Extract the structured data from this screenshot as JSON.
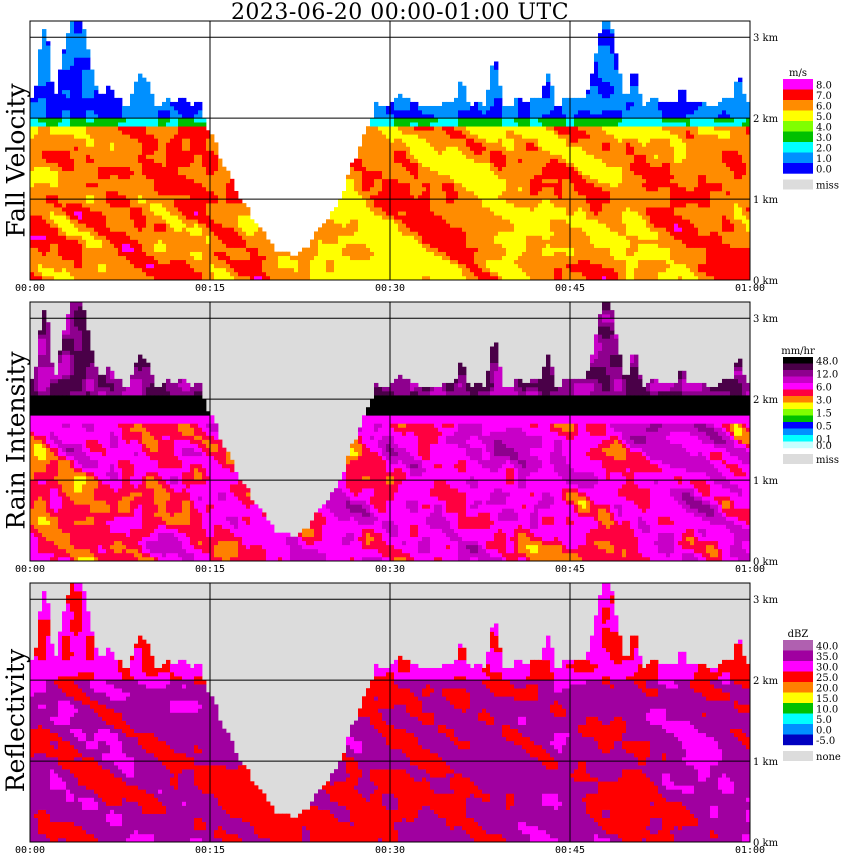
{
  "title": "2023-06-20   00:00-01:00 UTC",
  "colors": {
    "missing": "#dcdcdc",
    "grid": "#000000",
    "frame": "#000000"
  },
  "chart_data": [
    {
      "type": "heatmap",
      "title": "Fall Velocity",
      "xlabel": "",
      "ylabel": "",
      "x_ticks": [
        "00:00",
        "00:15",
        "00:30",
        "00:45",
        "01:00"
      ],
      "y_ticks": [
        "0 km",
        "1 km",
        "2 km",
        "3 km"
      ],
      "xlim": [
        "00:00",
        "01:00"
      ],
      "ylim_km": [
        0,
        3.2
      ],
      "grid": true,
      "legend_unit": "m/s",
      "legend": [
        {
          "label": "8.0",
          "color": "#ff00ff"
        },
        {
          "label": "7.0",
          "color": "#ff0000"
        },
        {
          "label": "6.0",
          "color": "#ff8c00"
        },
        {
          "label": "5.0",
          "color": "#ffff00"
        },
        {
          "label": "4.0",
          "color": "#80ff00"
        },
        {
          "label": "3.0",
          "color": "#00c000"
        },
        {
          "label": "2.0",
          "color": "#00ffff"
        },
        {
          "label": "1.0",
          "color": "#0090ff"
        },
        {
          "label": "0.0",
          "color": "#0000ff"
        }
      ],
      "legend_missing": "miss",
      "missing_label_visible": true,
      "palette": [
        "#ffffff",
        "#0000ff",
        "#0090ff",
        "#00ffff",
        "#00c000",
        "#80ff00",
        "#ffff00",
        "#ff8c00",
        "#ff0000",
        "#ff00ff"
      ],
      "bright_band_km": 1.95,
      "background": "white"
    },
    {
      "type": "heatmap",
      "title": "Rain Intensity",
      "xlabel": "",
      "ylabel": "",
      "x_ticks": [
        "00:00",
        "00:15",
        "00:30",
        "00:45",
        "01:00"
      ],
      "y_ticks": [
        "0 km",
        "1 km",
        "2 km",
        "3 km"
      ],
      "xlim": [
        "00:00",
        "01:00"
      ],
      "ylim_km": [
        0,
        3.2
      ],
      "grid": true,
      "legend_unit": "mm/hr",
      "legend": [
        {
          "label": "48.0",
          "color": "#000000"
        },
        {
          "label": "",
          "color": "#4a0048"
        },
        {
          "label": "12.0",
          "color": "#8e008e"
        },
        {
          "label": "",
          "color": "#c800c8"
        },
        {
          "label": "6.0",
          "color": "#ff00ff"
        },
        {
          "label": "",
          "color": "#ff0040"
        },
        {
          "label": "3.0",
          "color": "#ff8000"
        },
        {
          "label": "",
          "color": "#ffff00"
        },
        {
          "label": "1.5",
          "color": "#80ff00"
        },
        {
          "label": "",
          "color": "#00c000"
        },
        {
          "label": "0.5",
          "color": "#0000ff"
        },
        {
          "label": "",
          "color": "#0090ff"
        },
        {
          "label": "0.1",
          "color": "#00ffff"
        },
        {
          "label": "0.0",
          "color": "#c8ffff"
        }
      ],
      "legend_missing": "miss",
      "background": "grey"
    },
    {
      "type": "heatmap",
      "title": "Reflectivity",
      "xlabel": "",
      "ylabel": "",
      "x_ticks": [
        "00:00",
        "00:15",
        "00:30",
        "00:45",
        "01:00"
      ],
      "y_ticks": [
        "0 km",
        "1 km",
        "2 km",
        "3 km"
      ],
      "xlim": [
        "00:00",
        "01:00"
      ],
      "ylim_km": [
        0,
        3.2
      ],
      "grid": true,
      "legend_unit": "dBZ",
      "legend": [
        {
          "label": "40.0",
          "color": "#b060b0"
        },
        {
          "label": "35.0",
          "color": "#a000a0"
        },
        {
          "label": "30.0",
          "color": "#ff00ff"
        },
        {
          "label": "25.0",
          "color": "#ff0000"
        },
        {
          "label": "20.0",
          "color": "#ff8000"
        },
        {
          "label": "15.0",
          "color": "#ffff00"
        },
        {
          "label": "10.0",
          "color": "#00c000"
        },
        {
          "label": "5.0",
          "color": "#00ffff"
        },
        {
          "label": "0.0",
          "color": "#0090ff"
        },
        {
          "label": "-5.0",
          "color": "#0000c0"
        }
      ],
      "legend_missing": "none",
      "background": "grey"
    }
  ]
}
